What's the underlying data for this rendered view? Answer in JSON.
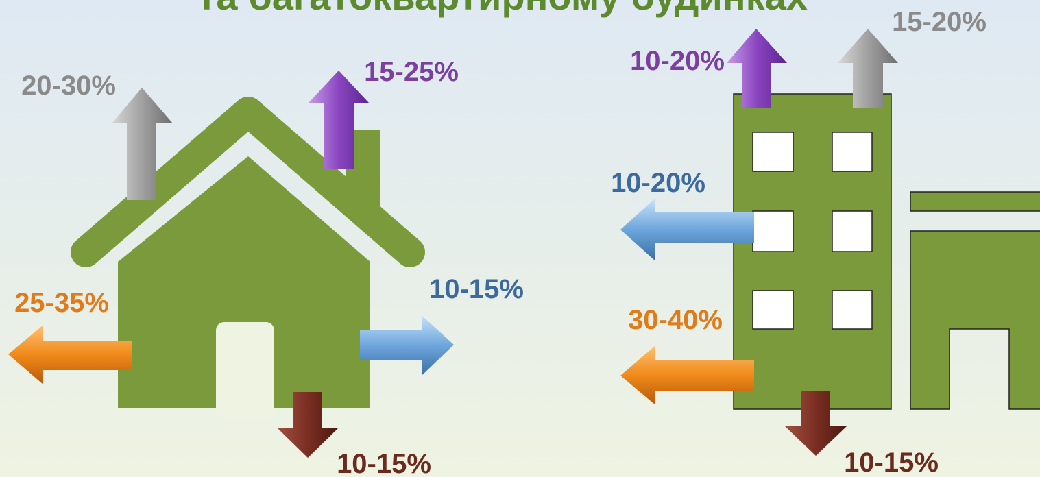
{
  "title": "та багатоквартирному будинках",
  "house": {
    "roof": "20-30%",
    "chimney": "15-25%",
    "walls": "25-35%",
    "windows": "10-15%",
    "floor": "10-15%"
  },
  "building": {
    "roof": "10-20%",
    "ventilation": "15-20%",
    "windows": "10-20%",
    "walls": "30-40%",
    "floor": "10-15%"
  }
}
